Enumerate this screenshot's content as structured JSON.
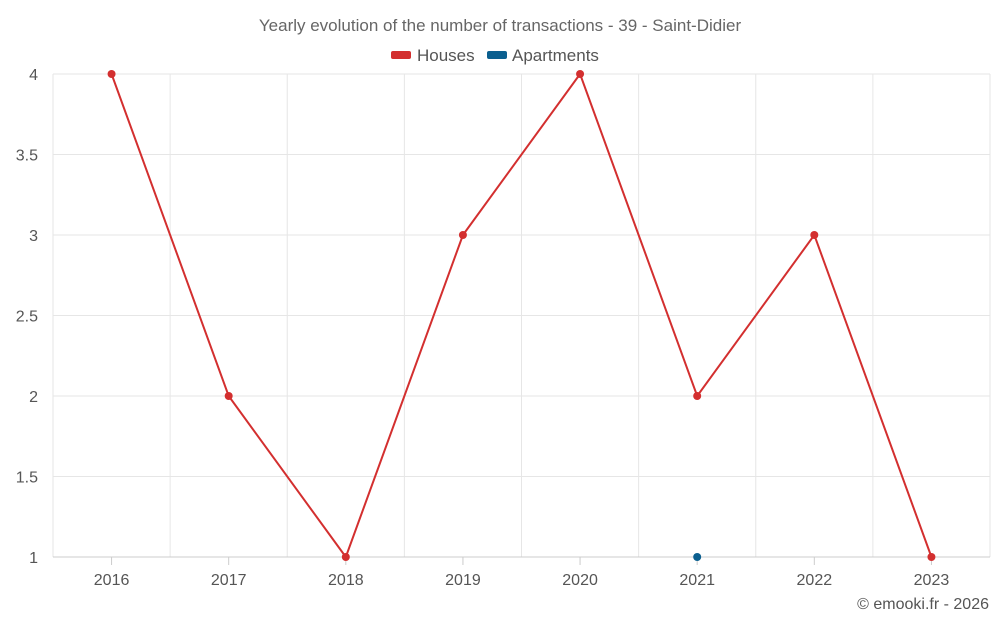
{
  "chart_data": {
    "type": "line",
    "title": "Yearly evolution of the number of transactions - 39 - Saint-Didier",
    "categories": [
      "2016",
      "2017",
      "2018",
      "2019",
      "2020",
      "2021",
      "2022",
      "2023"
    ],
    "series": [
      {
        "name": "Houses",
        "color": "#d32f2f",
        "values": [
          4,
          2,
          1,
          3,
          4,
          2,
          3,
          1
        ]
      },
      {
        "name": "Apartments",
        "color": "#0b5f8f",
        "values": [
          null,
          null,
          null,
          null,
          null,
          1,
          null,
          null
        ]
      }
    ],
    "ylim": [
      1,
      4
    ],
    "yticks": [
      "1",
      "1.5",
      "2",
      "2.5",
      "3",
      "3.5",
      "4"
    ],
    "grid": true,
    "legend_position": "top-center"
  },
  "credit": "© emooki.fr - 2026"
}
